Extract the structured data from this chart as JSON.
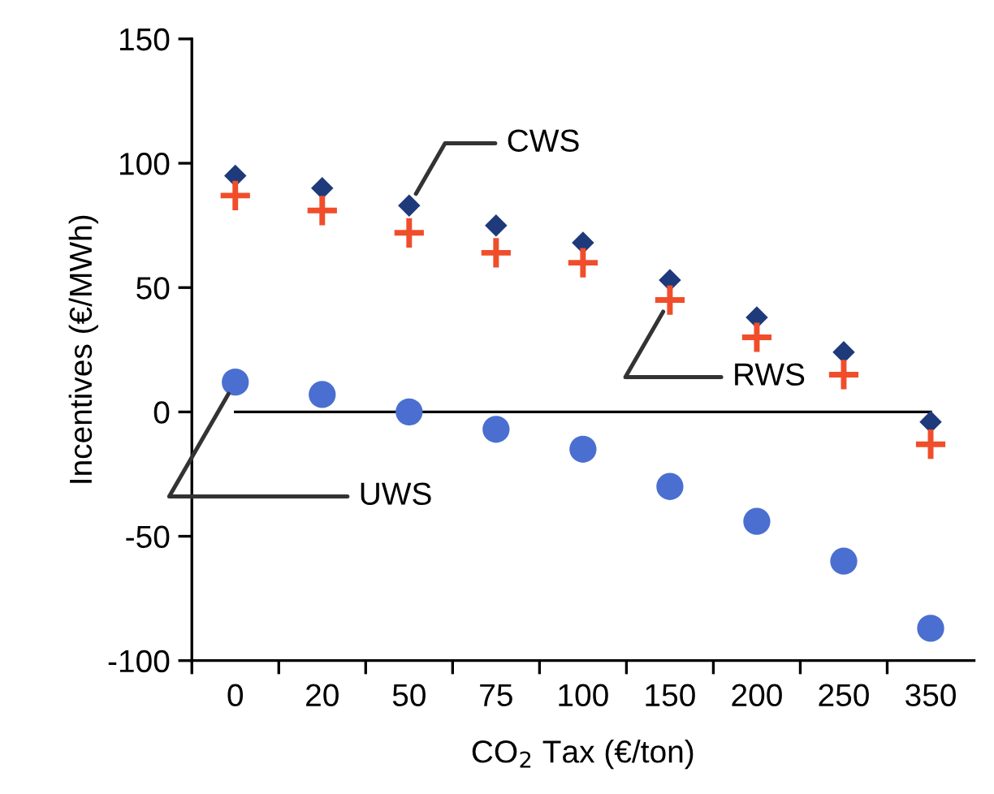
{
  "chart_data": {
    "type": "scatter",
    "xlabel": "CO$_{2}$ Tax (€/ton)",
    "ylabel": "Incentives (€/MWh)",
    "categories": [
      "0",
      "20",
      "50",
      "75",
      "100",
      "150",
      "200",
      "250",
      "350"
    ],
    "series": [
      {
        "color": "#1f3a7a",
        "marker": "diamond",
        "values": [
          95,
          90,
          83,
          75,
          68,
          53,
          38,
          24,
          -4
        ]
      },
      {
        "color": "#f04e2b",
        "marker": "cross",
        "values": [
          87,
          81,
          72,
          64,
          60,
          45,
          30,
          15,
          -13
        ]
      },
      {
        "color": "#4a6fd0",
        "marker": "circle",
        "values": [
          12,
          7,
          0,
          -7,
          -15,
          -30,
          -44,
          -60,
          -87
        ]
      }
    ],
    "annotations": [
      {
        "text": "CWS",
        "x": "50",
        "y": 83
      },
      {
        "text": "RWS",
        "x": "150",
        "y": 45
      },
      {
        "text": "UWS",
        "x": "0",
        "y": 12
      }
    ],
    "ylim": [
      -100,
      150
    ],
    "yticks": [
      -100,
      -50,
      0,
      50,
      100,
      150
    ],
    "ref_lines": [
      {
        "axis": "y",
        "value": 0,
        "color": "#000000"
      }
    ]
  }
}
